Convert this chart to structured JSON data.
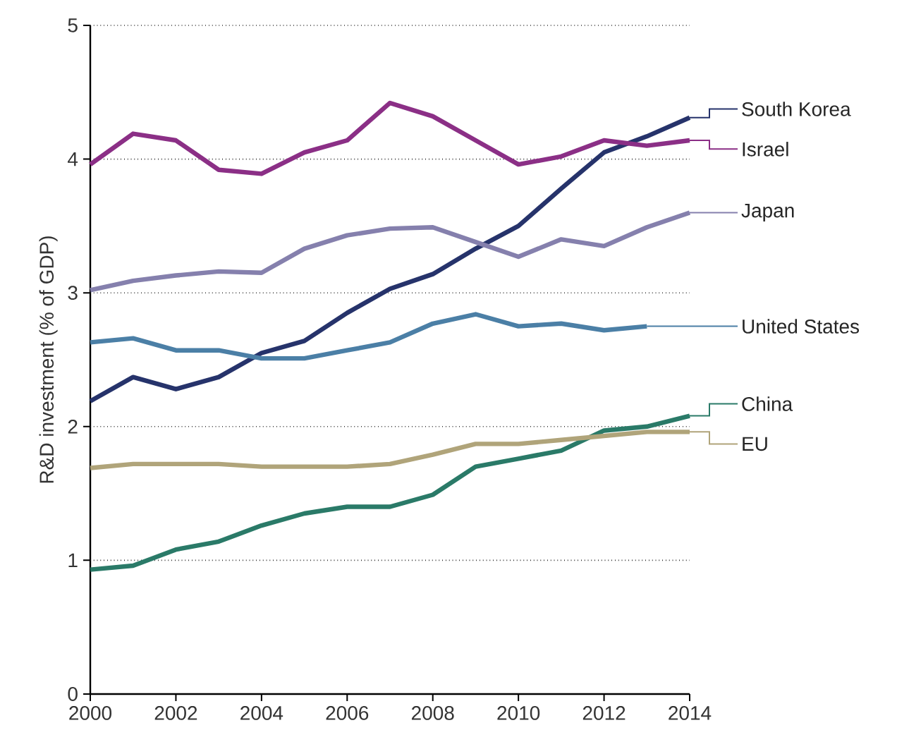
{
  "chart_data": {
    "type": "line",
    "ylabel": "R&D investment (% of GDP)",
    "x": [
      2000,
      2001,
      2002,
      2003,
      2004,
      2005,
      2006,
      2007,
      2008,
      2009,
      2010,
      2011,
      2012,
      2013,
      2014
    ],
    "series": [
      {
        "name": "South Korea",
        "color": "#26336b",
        "values": [
          2.19,
          2.37,
          2.28,
          2.37,
          2.55,
          2.64,
          2.85,
          3.03,
          3.14,
          3.33,
          3.5,
          3.78,
          4.05,
          4.17,
          4.31
        ]
      },
      {
        "name": "Israel",
        "color": "#8b2f86",
        "values": [
          3.96,
          4.19,
          4.14,
          3.92,
          3.89,
          4.05,
          4.14,
          4.42,
          4.32,
          4.14,
          3.96,
          4.02,
          4.14,
          4.1,
          4.14
        ]
      },
      {
        "name": "Japan",
        "color": "#8580ad",
        "values": [
          3.02,
          3.09,
          3.13,
          3.16,
          3.15,
          3.33,
          3.43,
          3.48,
          3.49,
          3.38,
          3.27,
          3.4,
          3.35,
          3.49,
          3.6
        ]
      },
      {
        "name": "United States",
        "color": "#4b7fa6",
        "values": [
          2.63,
          2.66,
          2.57,
          2.57,
          2.51,
          2.51,
          2.57,
          2.63,
          2.77,
          2.84,
          2.75,
          2.77,
          2.72,
          2.75,
          null
        ]
      },
      {
        "name": "China",
        "color": "#2a7a68",
        "values": [
          0.93,
          0.96,
          1.08,
          1.14,
          1.26,
          1.35,
          1.4,
          1.4,
          1.49,
          1.7,
          1.76,
          1.82,
          1.97,
          2.0,
          2.08
        ]
      },
      {
        "name": "EU",
        "color": "#b0a47a",
        "values": [
          1.69,
          1.72,
          1.72,
          1.72,
          1.7,
          1.7,
          1.7,
          1.72,
          1.79,
          1.87,
          1.87,
          1.9,
          1.93,
          1.96,
          1.96
        ]
      }
    ],
    "xlim": [
      2000,
      2014
    ],
    "ylim": [
      0,
      5
    ],
    "xticks": [
      2000,
      2002,
      2004,
      2006,
      2008,
      2010,
      2012,
      2014
    ],
    "yticks": [
      0,
      1,
      2,
      3,
      4,
      5
    ],
    "grid": "y",
    "legend": "right",
    "marker": "none",
    "line_style": "solid"
  }
}
